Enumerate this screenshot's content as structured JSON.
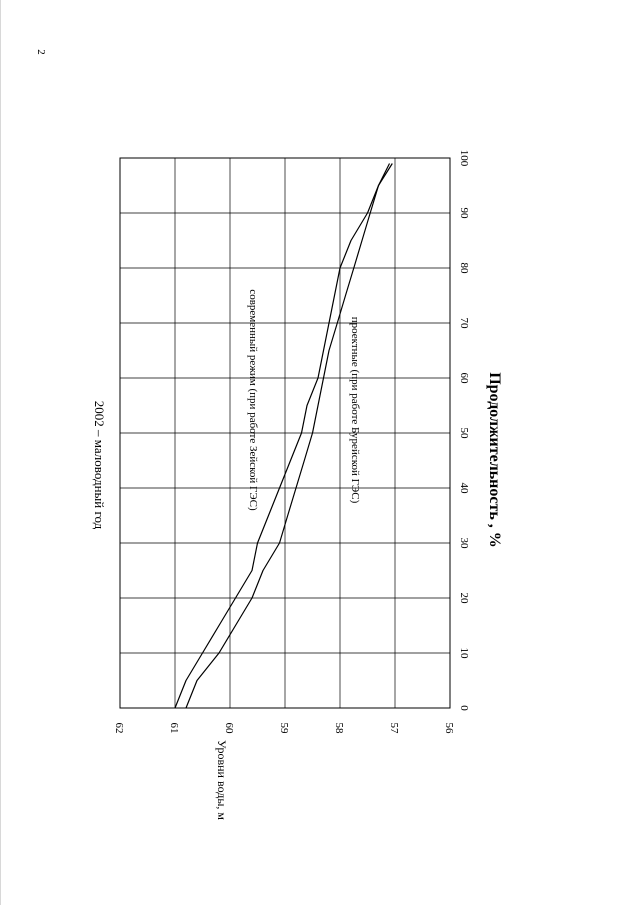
{
  "page_number": "2",
  "chart_data": {
    "type": "line",
    "title": "2002 – маловодный год",
    "xlabel": "Продолжительность , %",
    "ylabel": "Уровни воды, м",
    "xlim": [
      0,
      100
    ],
    "ylim": [
      56,
      62
    ],
    "x_ticks": [
      "0",
      "10",
      "20",
      "30",
      "40",
      "50",
      "60",
      "70",
      "80",
      "90",
      "100"
    ],
    "y_ticks": [
      "62",
      "61",
      "60",
      "59",
      "58",
      "57",
      "56"
    ],
    "grid": true,
    "orientation": "rotated-90-clockwise",
    "series": [
      {
        "name": "современный режим (при работе Зейской ГЭС)",
        "color": "#000000",
        "x": [
          0,
          5,
          10,
          15,
          20,
          25,
          30,
          35,
          40,
          45,
          50,
          55,
          60,
          65,
          70,
          75,
          80,
          85,
          90,
          95,
          99
        ],
        "y": [
          61.0,
          60.8,
          60.5,
          60.2,
          59.9,
          59.6,
          59.5,
          59.3,
          59.1,
          58.9,
          58.7,
          58.6,
          58.4,
          58.3,
          58.2,
          58.1,
          58.0,
          57.8,
          57.5,
          57.3,
          57.05
        ]
      },
      {
        "name": "проектные (при работе Бурейской ГЭС)",
        "color": "#000000",
        "x": [
          0,
          5,
          10,
          15,
          20,
          25,
          30,
          35,
          40,
          45,
          50,
          55,
          60,
          65,
          70,
          75,
          80,
          85,
          90,
          95,
          99
        ],
        "y": [
          60.8,
          60.6,
          60.2,
          59.9,
          59.6,
          59.4,
          59.1,
          58.95,
          58.8,
          58.65,
          58.5,
          58.4,
          58.3,
          58.2,
          58.05,
          57.9,
          57.75,
          57.6,
          57.45,
          57.3,
          57.1
        ]
      }
    ]
  }
}
